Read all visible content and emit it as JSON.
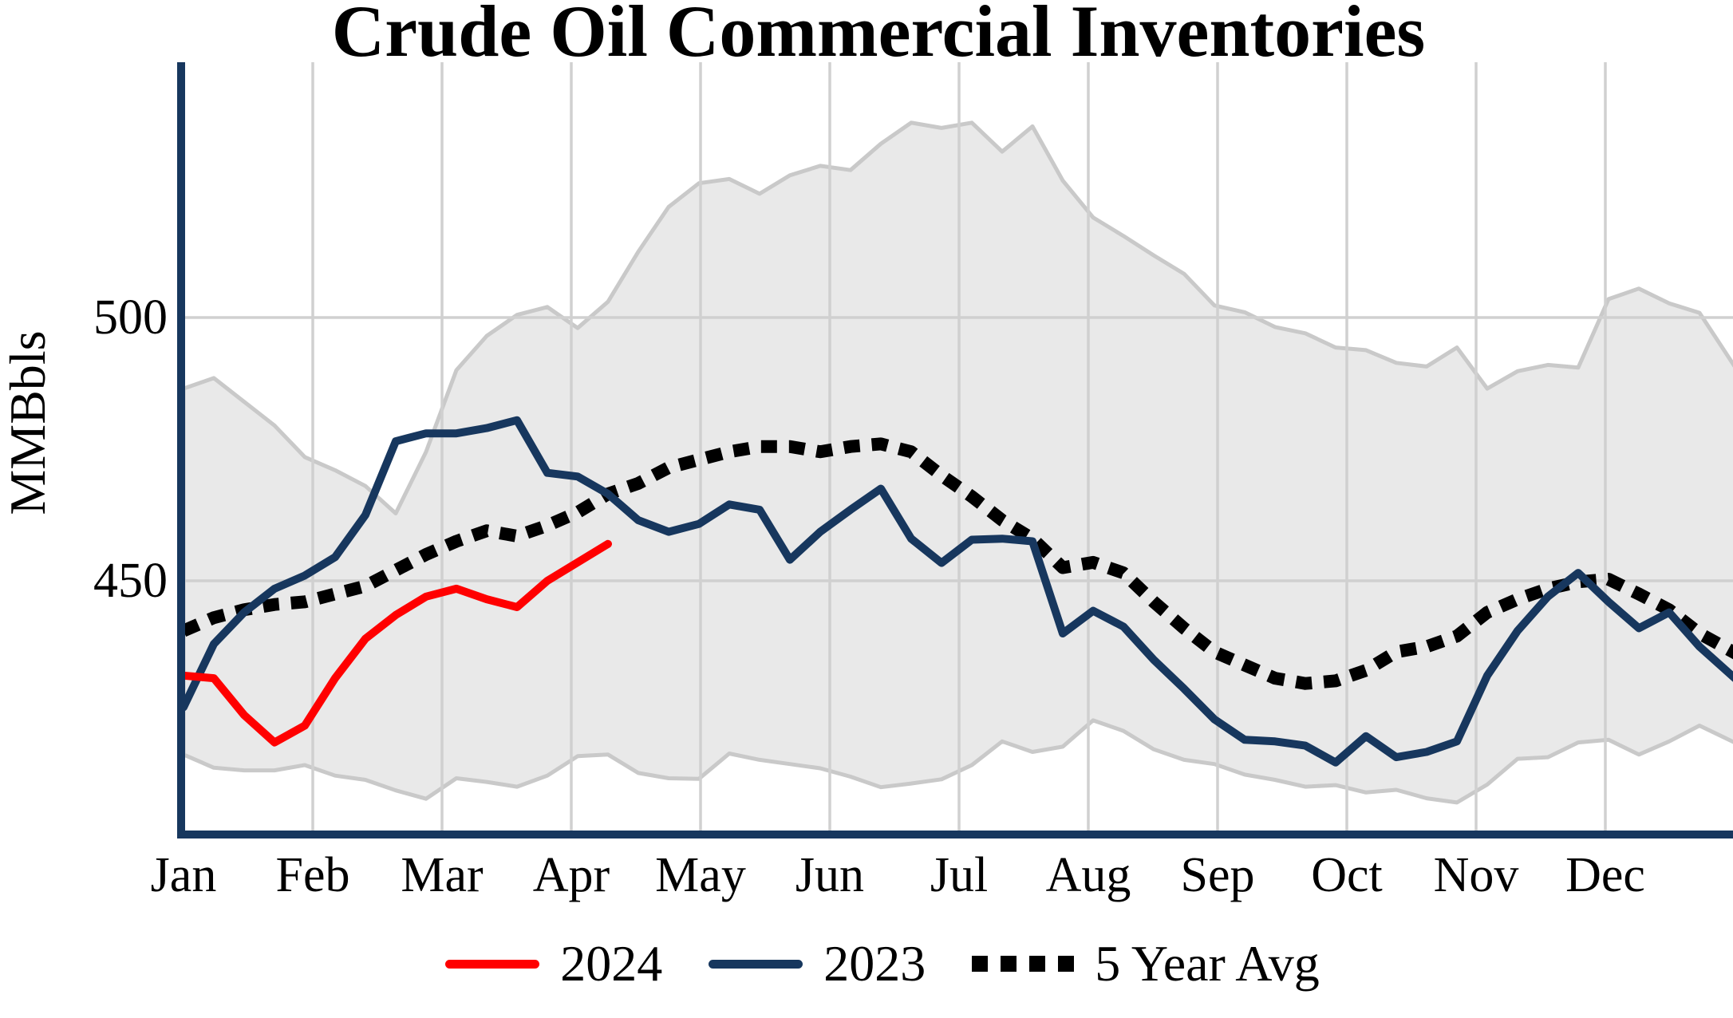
{
  "title": "Crude Oil Commercial Inventories",
  "legend": [
    {
      "label": "2024",
      "color": "#FF0000",
      "style": "solid"
    },
    {
      "label": "2023",
      "color": "#17375E",
      "style": "solid"
    },
    {
      "label": "5 Year Avg",
      "color": "#000000",
      "style": "dotted"
    }
  ],
  "colors": {
    "axis": "#17375E",
    "gridline": "#D0D0D0",
    "band_fill": "#E9E9E9",
    "band_edge": "#C9C9C9",
    "series_2024": "#FF0000",
    "series_2023": "#17375E",
    "series_avg": "#000000",
    "text": "#000000",
    "background": "#FFFFFF"
  },
  "chart_data": {
    "type": "line",
    "title": "Crude Oil Commercial Inventories",
    "xlabel": "",
    "ylabel": "MMBbls",
    "yticks": [
      500,
      450
    ],
    "ylim": [
      400,
      548
    ],
    "grid": "horizontal at 450 and 500, vertical at each month",
    "legend_position": "bottom-center",
    "x_unit": "week-of-year (1-52), Jan-Dec",
    "months": [
      "Jan",
      "Feb",
      "Mar",
      "Apr",
      "May",
      "Jun",
      "Jul",
      "Aug",
      "Sep",
      "Oct",
      "Nov",
      "Dec"
    ],
    "series": [
      {
        "name": "2024",
        "style": "solid",
        "color": "#FF0000",
        "start_week": 1,
        "values": [
          432,
          431.5,
          424.5,
          419.3,
          422.5,
          431.5,
          439,
          443.5,
          447,
          448.5,
          446.5,
          445,
          450,
          453.5,
          457
        ]
      },
      {
        "name": "2023",
        "style": "solid",
        "color": "#17375E",
        "start_week": 1,
        "values": [
          426,
          438,
          444,
          448.5,
          451,
          454.5,
          462.5,
          476.5,
          478,
          478,
          479,
          480.5,
          470.5,
          469.8,
          466.5,
          461.5,
          459.3,
          460.8,
          464.5,
          463.5,
          454,
          459.3,
          463.5,
          467.5,
          458,
          453.4,
          457.8,
          458,
          457.5,
          440,
          444.3,
          441.3,
          435,
          429.5,
          423.7,
          419.8,
          419.5,
          418.7,
          415.5,
          420.5,
          416.5,
          417.5,
          419.5,
          432,
          440.5,
          447,
          451.5,
          446,
          441,
          444,
          437.5,
          431
        ]
      },
      {
        "name": "5 Year Avg",
        "style": "dotted",
        "color": "#000000",
        "start_week": 1,
        "values": [
          440.5,
          443,
          444.5,
          445.5,
          446,
          447.5,
          449,
          452,
          455,
          457.5,
          459.5,
          458.5,
          460.5,
          463,
          466.5,
          468.5,
          471.5,
          473,
          474.5,
          475.5,
          475.5,
          474.5,
          475.5,
          476,
          474.5,
          470,
          466,
          461.5,
          458,
          452.5,
          453.5,
          451.5,
          446,
          441,
          436.5,
          434,
          431.5,
          430.5,
          431,
          433,
          436.5,
          437.5,
          439.5,
          444,
          446.5,
          448.5,
          449.8,
          450.3,
          447.5,
          444.5,
          440,
          436
        ]
      }
    ],
    "band": {
      "name": "5 Year Range",
      "fill": "#E9E9E9",
      "edge": "#C9C9C9",
      "start_week": 1,
      "max": [
        486.5,
        488.5,
        484,
        479.5,
        473.5,
        471,
        468,
        462.8,
        474.5,
        490,
        496.5,
        500.5,
        502,
        498,
        503,
        512.5,
        521,
        525.5,
        526.3,
        523.5,
        527,
        528.8,
        528,
        533,
        537,
        536,
        537,
        531.5,
        536.3,
        526,
        519,
        515.5,
        511.8,
        508.3,
        502.3,
        501,
        498.2,
        497,
        494.3,
        493.8,
        491.4,
        490.7,
        494.3,
        486.5,
        489.8,
        491,
        490.5,
        503.5,
        505.5,
        502.7,
        500.9,
        489.8
      ],
      "min": [
        417,
        414.5,
        414,
        414,
        415,
        413,
        412.2,
        410.2,
        408.6,
        412.5,
        411.8,
        410.9,
        413,
        416.7,
        417,
        413.5,
        412.5,
        412.4,
        417.2,
        416,
        415.2,
        414.4,
        412.8,
        410.8,
        411.5,
        412.3,
        415,
        419.5,
        417.5,
        418.5,
        423.5,
        421.5,
        418,
        416,
        415.2,
        413.2,
        412.2,
        410.9,
        411.2,
        409.8,
        410.3,
        408.7,
        407.9,
        411.3,
        416.2,
        416.5,
        419.3,
        419.8,
        417,
        419.5,
        422.5,
        419
      ]
    }
  }
}
